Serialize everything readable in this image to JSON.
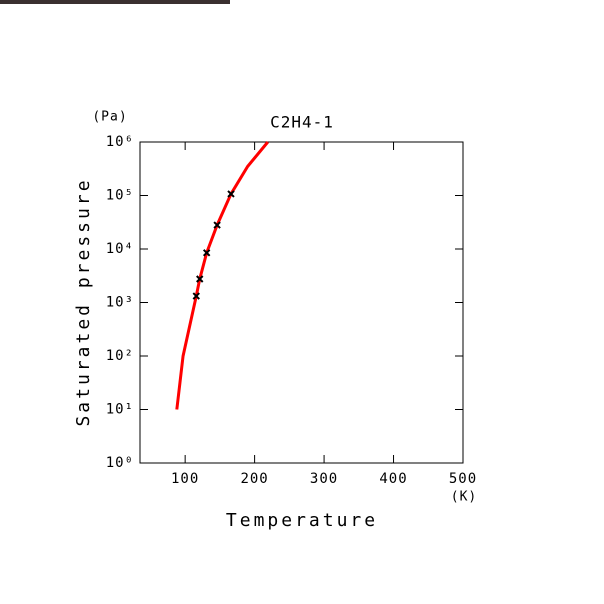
{
  "chart_data": {
    "type": "line",
    "title": "C2H4-1",
    "x_label": "Temperature",
    "x_unit": "(K)",
    "y_label": "Saturated pressure",
    "y_unit": "(Pa)",
    "log_y": true,
    "xlim": [
      35,
      500
    ],
    "xticks": [
      100,
      200,
      300,
      400,
      500
    ],
    "ylim": [
      1,
      1000000
    ],
    "yticks": [
      {
        "value": 1,
        "label": "10⁰"
      },
      {
        "value": 10,
        "label": "10¹"
      },
      {
        "value": 100,
        "label": "10²"
      },
      {
        "value": 1000,
        "label": "10³"
      },
      {
        "value": 10000,
        "label": "10⁴"
      },
      {
        "value": 100000,
        "label": "10⁵"
      },
      {
        "value": 1000000,
        "label": "10⁶"
      }
    ],
    "series": [
      {
        "color": "#ff0000",
        "style": "line",
        "x": [
          88,
          97,
          116,
          121,
          131,
          146,
          166,
          190,
          219
        ],
        "values": [
          10,
          100,
          1320,
          2750,
          8500,
          28000,
          107000,
          350000,
          1000000
        ]
      },
      {
        "color": "#000000",
        "style": "marker",
        "x": [
          116,
          121,
          131,
          146,
          166
        ],
        "values": [
          1320,
          2750,
          8500,
          28000,
          107000
        ]
      }
    ]
  }
}
